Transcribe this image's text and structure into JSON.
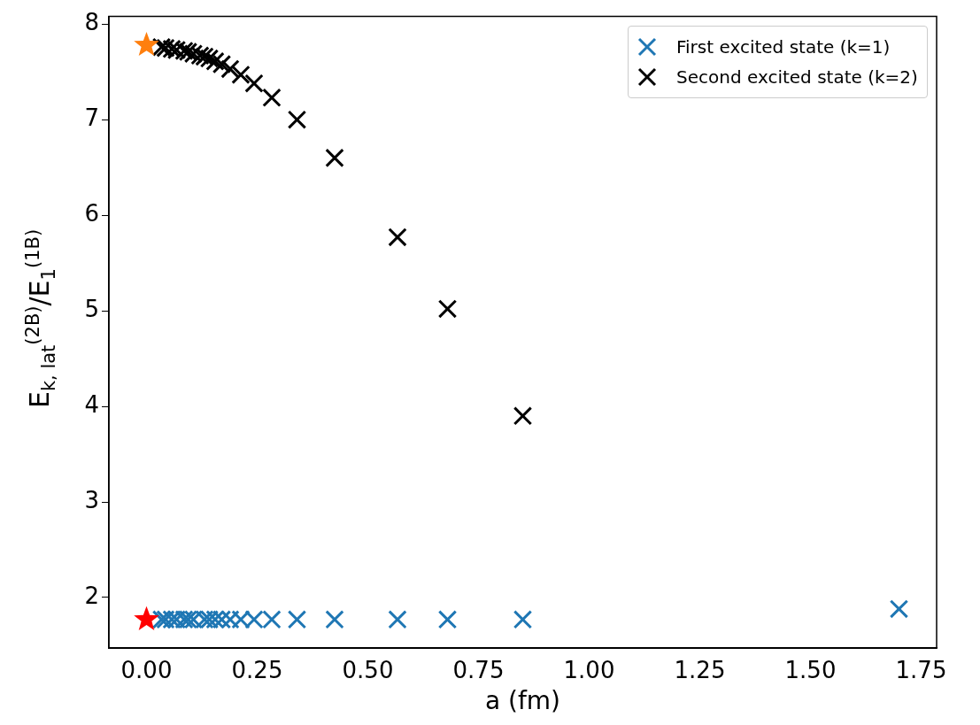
{
  "chart_data": {
    "type": "scatter",
    "xlabel": "a (fm)",
    "ylabel": "E$_{k, lat}$$^{(2B)}$/E$_{1}$$^{(1B)}$",
    "xlim": [
      -0.085,
      1.785
    ],
    "ylim": [
      1.47,
      8.08
    ],
    "xticks": [
      {
        "value": 0,
        "label": "0.00"
      },
      {
        "value": 0.25,
        "label": "0.25"
      },
      {
        "value": 0.5,
        "label": "0.50"
      },
      {
        "value": 0.75,
        "label": "0.75"
      },
      {
        "value": 1,
        "label": "1.00"
      },
      {
        "value": 1.25,
        "label": "1.25"
      },
      {
        "value": 1.5,
        "label": "1.50"
      },
      {
        "value": 1.75,
        "label": "1.75"
      }
    ],
    "yticks": [
      2,
      3,
      4,
      5,
      6,
      7,
      8
    ],
    "grid": false,
    "legend": "top right",
    "marker": "cross",
    "series": [
      {
        "name": "First excited state (k=1)",
        "color": "#1f77b4",
        "x": [
          1.7,
          0.85,
          0.68,
          0.567,
          0.425,
          0.34,
          0.283,
          0.243,
          0.213,
          0.189,
          0.17,
          0.155,
          0.142,
          0.131,
          0.121,
          0.106,
          0.094,
          0.085,
          0.068,
          0.057,
          0.043,
          0.034
        ],
        "values": [
          1.88,
          1.77,
          1.77,
          1.77,
          1.77,
          1.77,
          1.77,
          1.77,
          1.77,
          1.77,
          1.77,
          1.77,
          1.77,
          1.77,
          null,
          1.77,
          1.77,
          1.77,
          1.77,
          1.77,
          1.77,
          1.77
        ]
      },
      {
        "name": "Second excited state (k=2)",
        "color": "#000000",
        "x": [
          0.85,
          0.68,
          0.567,
          0.425,
          0.34,
          0.283,
          0.243,
          0.213,
          0.189,
          0.17,
          0.155,
          0.142,
          0.131,
          0.121,
          0.106,
          0.094,
          0.085,
          0.068,
          0.057,
          0.043,
          0.034
        ],
        "values": [
          3.9,
          5.02,
          5.77,
          6.6,
          7.0,
          7.23,
          7.38,
          7.47,
          7.53,
          7.58,
          7.61,
          7.64,
          7.66,
          7.67,
          7.69,
          7.71,
          7.72,
          7.73,
          7.74,
          7.75,
          7.76
        ]
      },
      {
        "color": "#ff0000",
        "marker": "star",
        "x": [
          0
        ],
        "values": [
          1.77
        ]
      },
      {
        "color": "#ff7f0e",
        "marker": "star",
        "x": [
          0
        ],
        "values": [
          7.78
        ]
      }
    ]
  }
}
